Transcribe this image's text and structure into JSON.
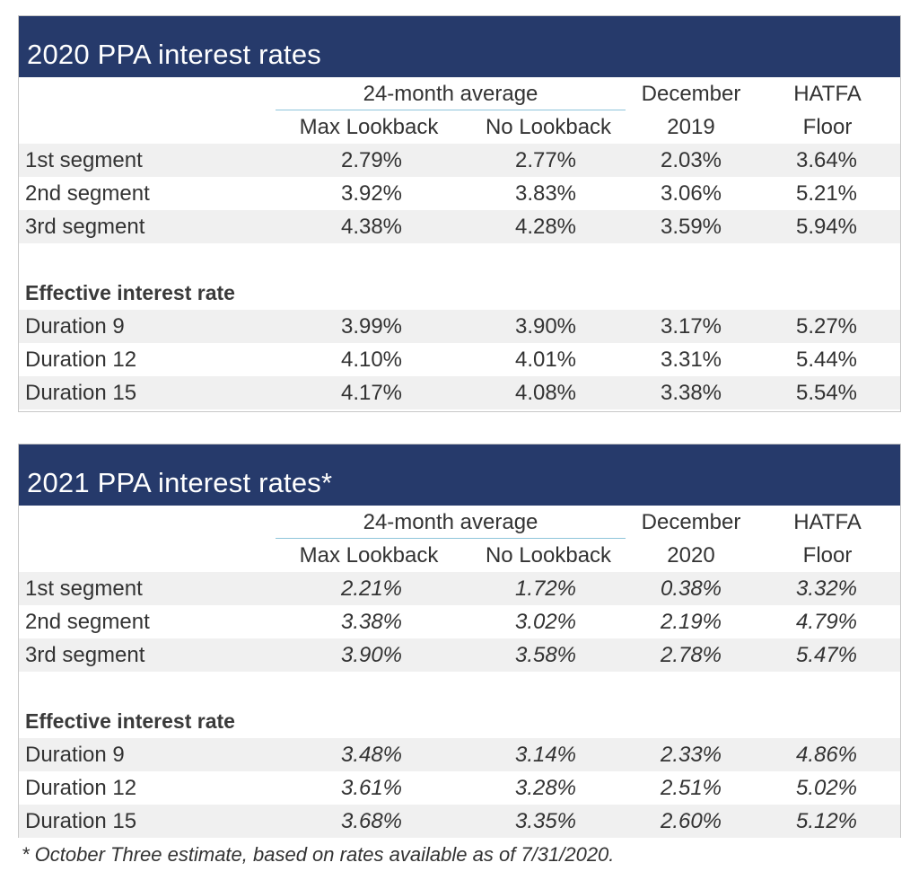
{
  "tables": [
    {
      "title": "2020 PPA interest rates",
      "headers": {
        "group": "24-month average",
        "max_lookback": "Max Lookback",
        "no_lookback": "No Lookback",
        "month_line1": "December",
        "month_line2": "2019",
        "floor_line1": "HATFA",
        "floor_line2": "Floor"
      },
      "segments": [
        {
          "label": "1st segment",
          "values": [
            "2.79%",
            "2.77%",
            "2.03%",
            "3.64%"
          ]
        },
        {
          "label": "2nd segment",
          "values": [
            "3.92%",
            "3.83%",
            "3.06%",
            "5.21%"
          ]
        },
        {
          "label": "3rd segment",
          "values": [
            "4.38%",
            "4.28%",
            "3.59%",
            "5.94%"
          ]
        }
      ],
      "effective_heading": "Effective interest rate",
      "durations": [
        {
          "label": "Duration 9",
          "values": [
            "3.99%",
            "3.90%",
            "3.17%",
            "5.27%"
          ]
        },
        {
          "label": "Duration 12",
          "values": [
            "4.10%",
            "4.01%",
            "3.31%",
            "5.44%"
          ]
        },
        {
          "label": "Duration 15",
          "values": [
            "4.17%",
            "4.08%",
            "3.38%",
            "5.54%"
          ]
        }
      ]
    },
    {
      "title": "2021 PPA interest rates*",
      "headers": {
        "group": "24-month average",
        "max_lookback": "Max Lookback",
        "no_lookback": "No Lookback",
        "month_line1": "December",
        "month_line2": "2020",
        "floor_line1": "HATFA",
        "floor_line2": "Floor"
      },
      "segments": [
        {
          "label": "1st segment",
          "values": [
            "2.21%",
            "1.72%",
            "0.38%",
            "3.32%"
          ]
        },
        {
          "label": "2nd segment",
          "values": [
            "3.38%",
            "3.02%",
            "2.19%",
            "4.79%"
          ]
        },
        {
          "label": "3rd segment",
          "values": [
            "3.90%",
            "3.58%",
            "2.78%",
            "5.47%"
          ]
        }
      ],
      "effective_heading": "Effective interest rate",
      "durations": [
        {
          "label": "Duration 9",
          "values": [
            "3.48%",
            "3.14%",
            "2.33%",
            "4.86%"
          ]
        },
        {
          "label": "Duration 12",
          "values": [
            "3.61%",
            "3.28%",
            "2.51%",
            "5.02%"
          ]
        },
        {
          "label": "Duration 15",
          "values": [
            "3.68%",
            "3.35%",
            "2.60%",
            "5.12%"
          ]
        }
      ]
    }
  ],
  "footnote": "* October Three estimate, based on rates available as of 7/31/2020.",
  "colors": {
    "title_bar": "#263a6b",
    "row_shade": "#f0f0f0",
    "header_rule": "#8ec5da"
  }
}
